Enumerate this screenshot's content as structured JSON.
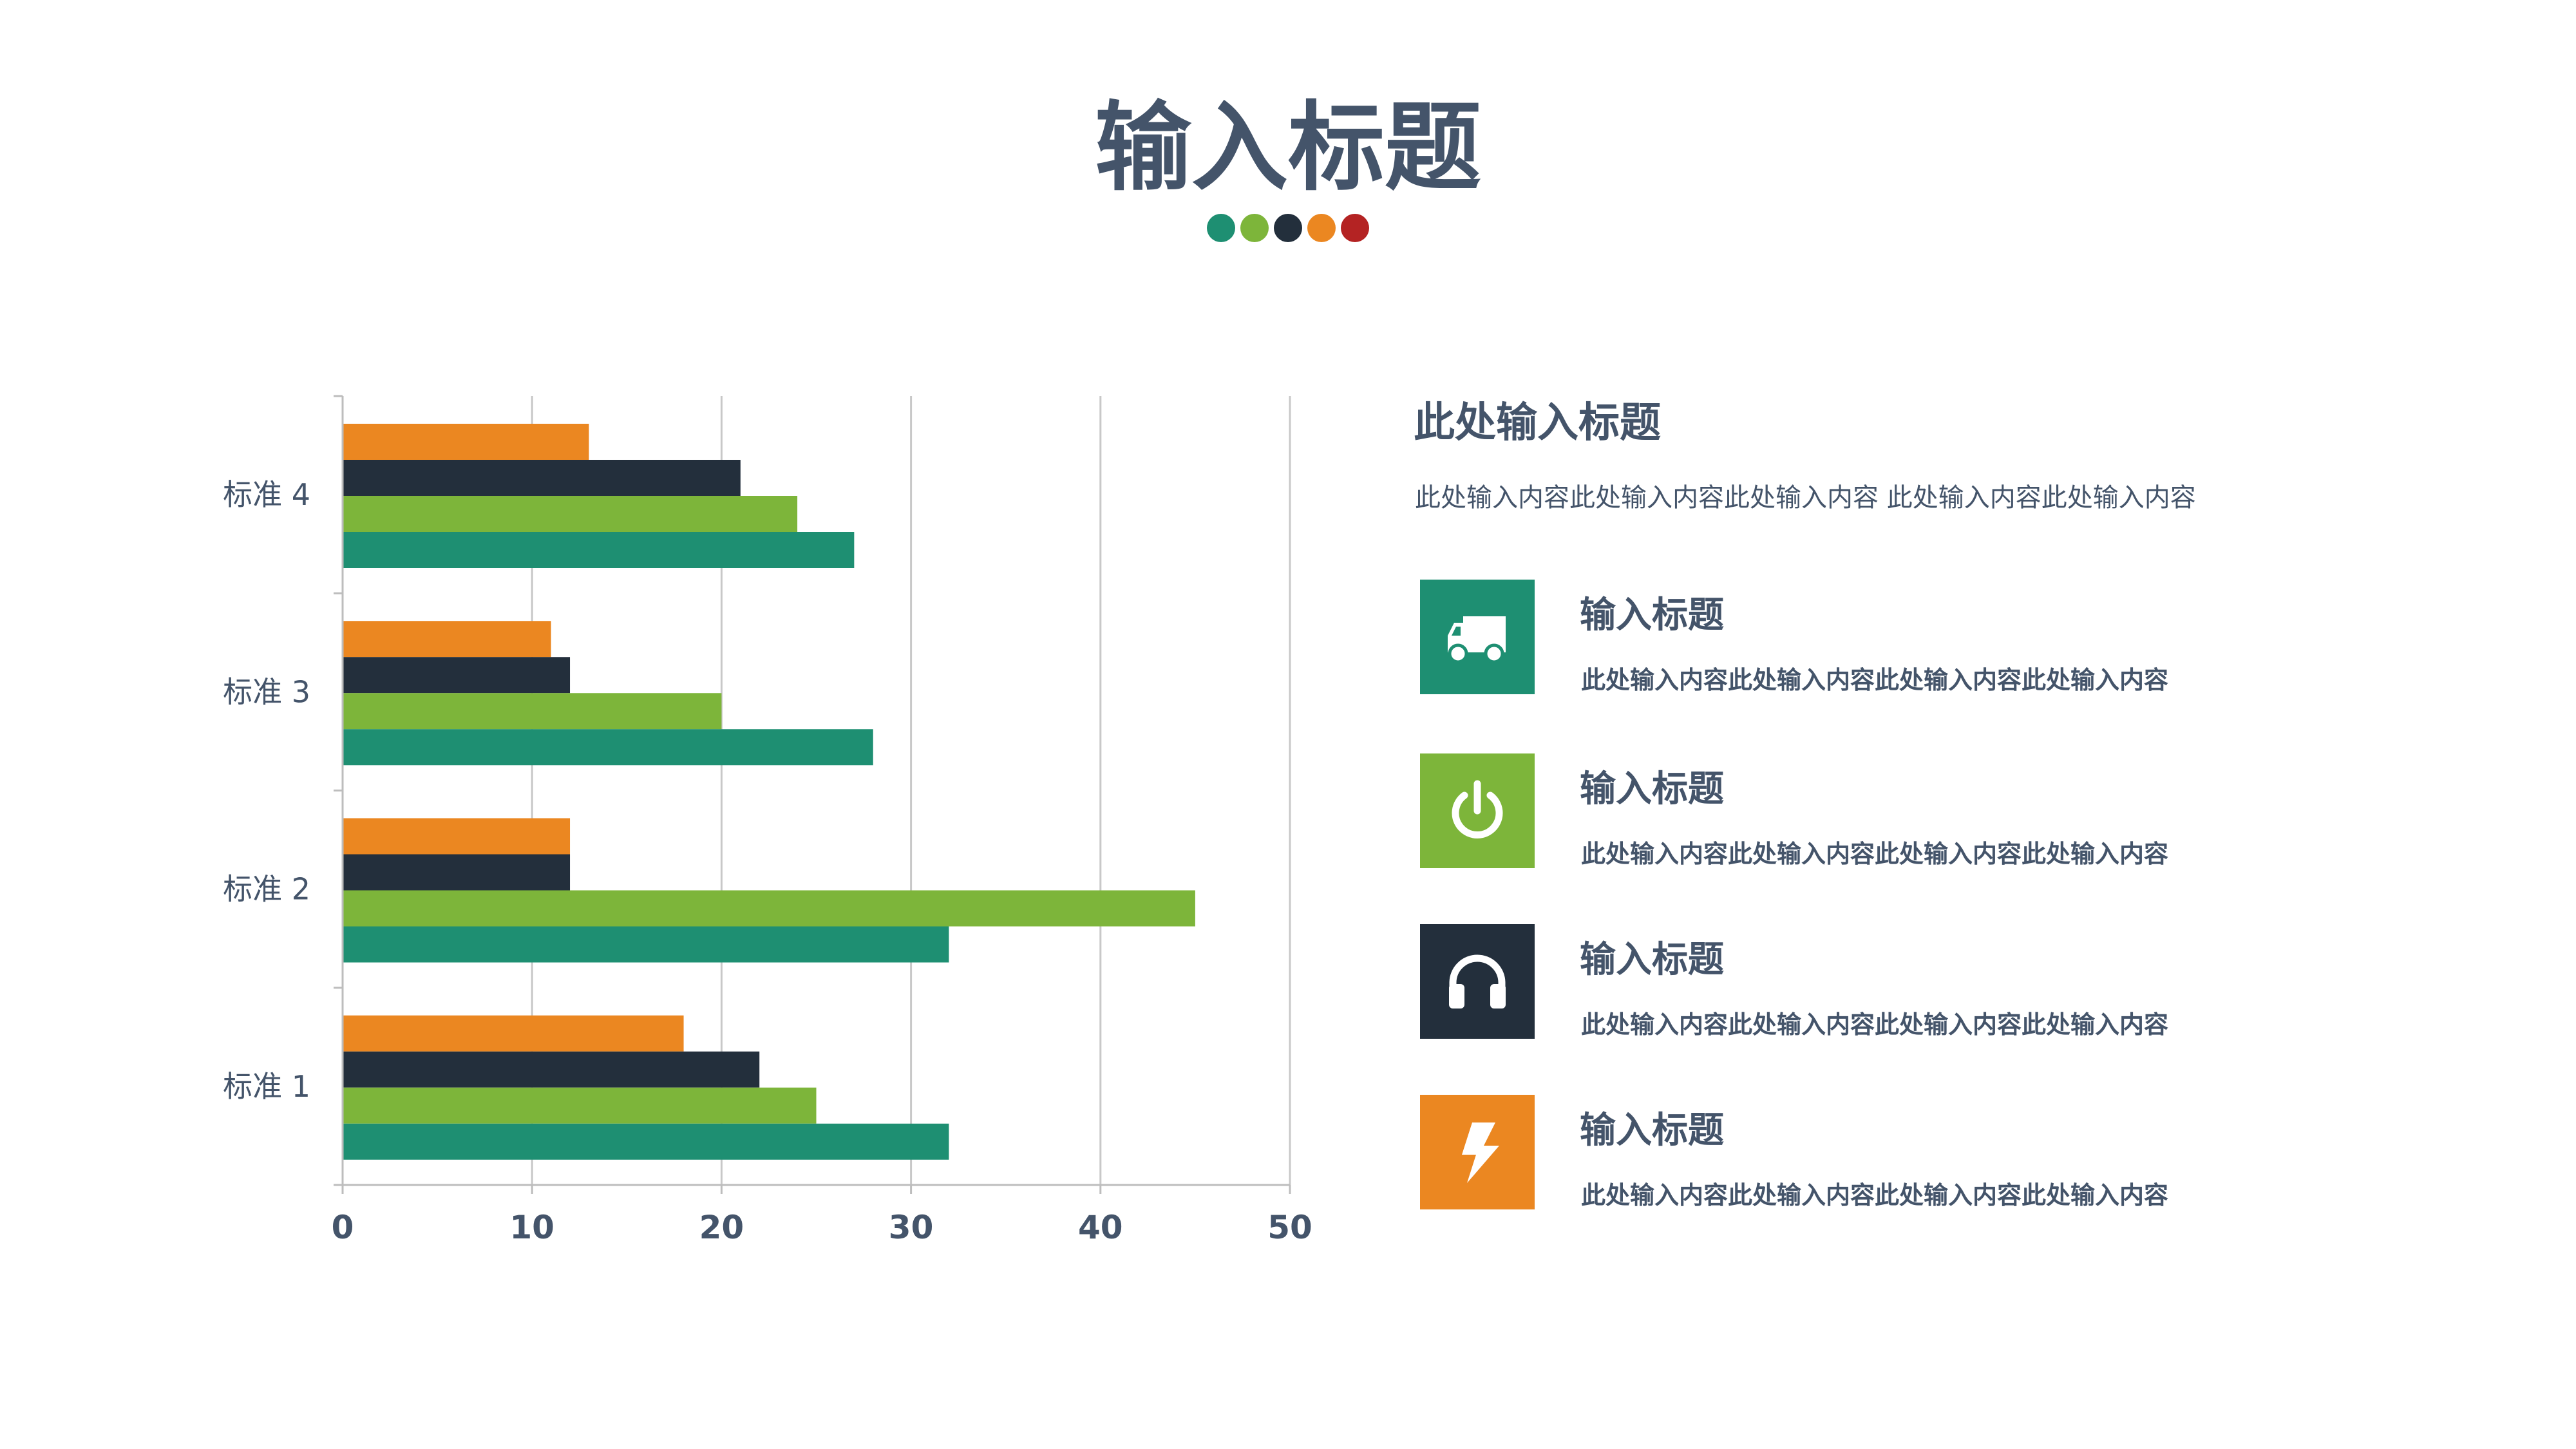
{
  "header": {
    "title": "输入标题",
    "dots": [
      "#1e8f72",
      "#7db53a",
      "#232f3c",
      "#eb8721",
      "#b42323"
    ]
  },
  "panel": {
    "title": "此处输入标题",
    "description": "此处输入内容此处输入内容此处输入内容 此处输入内容此处输入内容"
  },
  "features": [
    {
      "title": "输入标题",
      "text": "此处输入内容此处输入内容此处输入内容此处输入内容",
      "icon": "truck-icon",
      "color": "#1e8f72"
    },
    {
      "title": "输入标题",
      "text": "此处输入内容此处输入内容此处输入内容此处输入内容",
      "icon": "power-icon",
      "color": "#7db53a"
    },
    {
      "title": "输入标题",
      "text": "此处输入内容此处输入内容此处输入内容此处输入内容",
      "icon": "headphones-icon",
      "color": "#232f3c"
    },
    {
      "title": "输入标题",
      "text": "此处输入内容此处输入内容此处输入内容此处输入内容",
      "icon": "lightning-icon",
      "color": "#eb8721"
    }
  ],
  "chart_data": {
    "type": "bar",
    "orientation": "horizontal",
    "categories": [
      "标准 1",
      "标准 2",
      "标准 3",
      "标准 4"
    ],
    "xlim": [
      0,
      50
    ],
    "xticks": [
      0,
      10,
      20,
      30,
      40,
      50
    ],
    "grid": true,
    "legend": "none",
    "series": [
      {
        "color": "#1e8f72",
        "values": [
          32,
          32,
          28,
          27
        ]
      },
      {
        "color": "#7db53a",
        "values": [
          25,
          45,
          20,
          24
        ]
      },
      {
        "color": "#232f3c",
        "values": [
          22,
          12,
          12,
          21
        ]
      },
      {
        "color": "#eb8721",
        "values": [
          18,
          12,
          11,
          13
        ]
      }
    ]
  }
}
